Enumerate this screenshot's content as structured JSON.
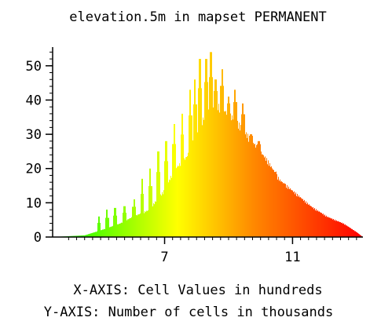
{
  "chart_data": {
    "type": "bar",
    "title": "elevation.5m in mapset PERMANENT",
    "xlabel": "X-AXIS: Cell Values in hundreds",
    "ylabel": "Y-AXIS: Number of cells in thousands",
    "xlim": [
      3.5,
      13.2
    ],
    "ylim": [
      0,
      55
    ],
    "x_ticks": [
      7,
      11
    ],
    "y_ticks": [
      0,
      10,
      20,
      30,
      40,
      50
    ],
    "x_minor_step": 0.25,
    "y_minor_step": 2,
    "color_ramp": [
      {
        "x": 3.5,
        "color": "#00ff00"
      },
      {
        "x": 7.4,
        "color": "#ffff00"
      },
      {
        "x": 9.8,
        "color": "#ff8800"
      },
      {
        "x": 13.2,
        "color": "#ff0000"
      }
    ],
    "envelope": [
      [
        3.5,
        0
      ],
      [
        4.5,
        0.5
      ],
      [
        5.0,
        2
      ],
      [
        5.6,
        4
      ],
      [
        6.0,
        6
      ],
      [
        6.5,
        8
      ],
      [
        7.0,
        14
      ],
      [
        7.3,
        20
      ],
      [
        7.7,
        24
      ],
      [
        8.0,
        31
      ],
      [
        8.3,
        37
      ],
      [
        8.7,
        39
      ],
      [
        9.2,
        35
      ],
      [
        9.7,
        29
      ],
      [
        10.2,
        23
      ],
      [
        10.6,
        17
      ],
      [
        11.1,
        13
      ],
      [
        11.6,
        9
      ],
      [
        12.1,
        6
      ],
      [
        12.6,
        4
      ],
      [
        13.0,
        1.5
      ],
      [
        13.2,
        0
      ]
    ],
    "peaks": [
      {
        "x": 4.95,
        "y": 6
      },
      {
        "x": 5.2,
        "y": 8
      },
      {
        "x": 5.45,
        "y": 8.5
      },
      {
        "x": 5.75,
        "y": 9
      },
      {
        "x": 6.05,
        "y": 11
      },
      {
        "x": 6.3,
        "y": 17
      },
      {
        "x": 6.55,
        "y": 20
      },
      {
        "x": 6.8,
        "y": 25
      },
      {
        "x": 7.05,
        "y": 28
      },
      {
        "x": 7.3,
        "y": 33
      },
      {
        "x": 7.55,
        "y": 36
      },
      {
        "x": 7.8,
        "y": 43
      },
      {
        "x": 7.95,
        "y": 46
      },
      {
        "x": 8.1,
        "y": 52
      },
      {
        "x": 8.3,
        "y": 52
      },
      {
        "x": 8.45,
        "y": 54
      },
      {
        "x": 8.6,
        "y": 46
      },
      {
        "x": 8.8,
        "y": 49
      },
      {
        "x": 9.0,
        "y": 41
      },
      {
        "x": 9.2,
        "y": 43
      },
      {
        "x": 9.45,
        "y": 39
      },
      {
        "x": 9.7,
        "y": 30
      },
      {
        "x": 9.95,
        "y": 28
      },
      {
        "x": 10.2,
        "y": 21
      },
      {
        "x": 10.45,
        "y": 19
      },
      {
        "x": 10.7,
        "y": 15
      },
      {
        "x": 10.95,
        "y": 13
      },
      {
        "x": 11.2,
        "y": 10
      },
      {
        "x": 11.5,
        "y": 8
      },
      {
        "x": 11.8,
        "y": 6
      },
      {
        "x": 12.1,
        "y": 5
      },
      {
        "x": 12.4,
        "y": 3
      },
      {
        "x": 12.7,
        "y": 2
      }
    ],
    "grid": false,
    "legend": "none"
  }
}
